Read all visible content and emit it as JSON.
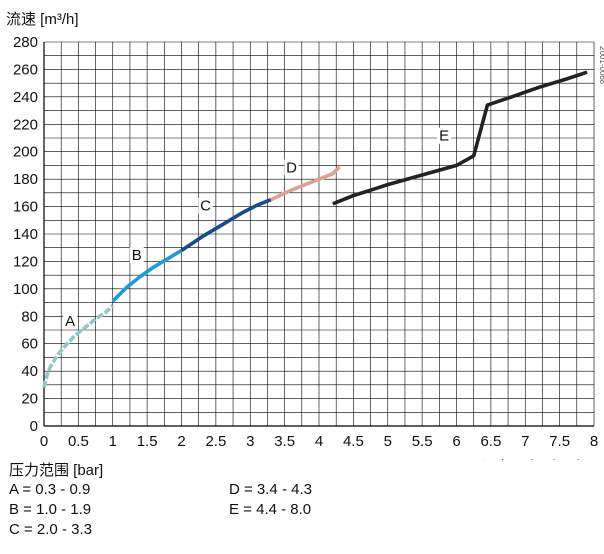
{
  "chart_data": {
    "type": "line",
    "ylabel": "流速 [m³/h]",
    "xlabel": "设定压力（bar）",
    "watermark": "2001-0068",
    "xlim": [
      0,
      8
    ],
    "ylim": [
      0,
      280
    ],
    "x_ticks": [
      "0",
      "0.5",
      "1",
      "1.5",
      "2",
      "2.5",
      "3",
      "3.5",
      "4",
      "4.5",
      "5",
      "5.5",
      "6",
      "6.5",
      "7",
      "7.5",
      "8"
    ],
    "y_ticks": [
      "0",
      "20",
      "40",
      "60",
      "80",
      "100",
      "120",
      "140",
      "160",
      "180",
      "200",
      "220",
      "240",
      "260",
      "280"
    ],
    "grid": true,
    "series": [
      {
        "name": "A",
        "color": "#8ec9c8",
        "dashed": true,
        "x": [
          0.0,
          0.05,
          0.1,
          0.2,
          0.3,
          0.45,
          0.6,
          0.75,
          0.9,
          1.0
        ],
        "y": [
          28,
          38,
          44,
          52,
          58,
          66,
          72,
          78,
          83,
          88
        ]
      },
      {
        "name": "B",
        "color": "#1e9ad8",
        "dashed": false,
        "x": [
          1.0,
          1.2,
          1.4,
          1.6,
          1.8,
          1.9,
          2.0
        ],
        "y": [
          91,
          101,
          109,
          116,
          122,
          125,
          128
        ]
      },
      {
        "name": "C",
        "color": "#1a4a8a",
        "dashed": false,
        "x": [
          2.0,
          2.3,
          2.6,
          2.9,
          3.1,
          3.3
        ],
        "y": [
          128,
          138,
          147,
          156,
          161,
          165
        ]
      },
      {
        "name": "D",
        "color": "#e0a090",
        "dashed": false,
        "x": [
          3.3,
          3.6,
          3.9,
          4.2,
          4.3
        ],
        "y": [
          165,
          172,
          178,
          184,
          189
        ]
      },
      {
        "name": "E",
        "color": "#222222",
        "dashed": false,
        "x": [
          4.2,
          4.5,
          5.0,
          5.5,
          6.0,
          6.25,
          6.45,
          6.8,
          7.2,
          7.6,
          7.9
        ],
        "y": [
          162,
          168,
          176,
          183,
          190,
          197,
          234,
          240,
          247,
          253,
          258
        ]
      }
    ],
    "annotations": [
      {
        "text": "A",
        "x": 0.38,
        "y": 73
      },
      {
        "text": "B",
        "x": 1.35,
        "y": 121
      },
      {
        "text": "C",
        "x": 2.35,
        "y": 157
      },
      {
        "text": "D",
        "x": 3.6,
        "y": 185
      },
      {
        "text": "E",
        "x": 5.82,
        "y": 208
      }
    ]
  },
  "legend": {
    "title": "压力范围 [bar]",
    "items": [
      {
        "label": "A = 0.3 - 0.9"
      },
      {
        "label": "B = 1.0 - 1.9"
      },
      {
        "label": "C = 2.0 - 3.3"
      },
      {
        "label": "D = 3.4 - 4.3"
      },
      {
        "label": "E = 4.4 - 8.0"
      }
    ]
  }
}
